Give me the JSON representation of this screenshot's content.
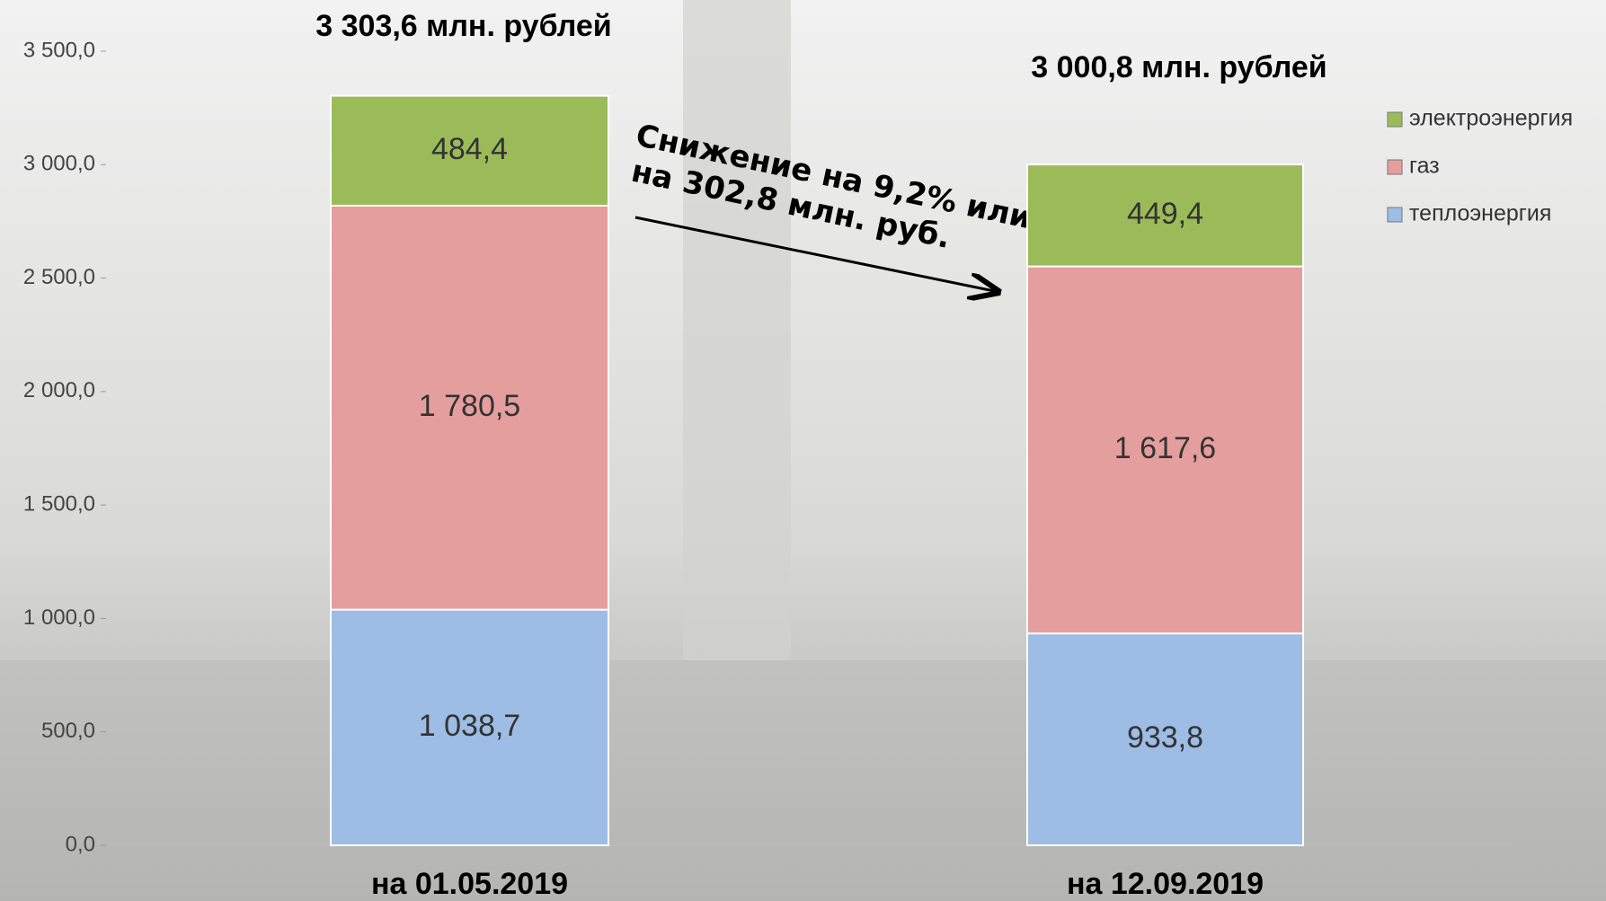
{
  "chart_data": {
    "type": "stacked_bar",
    "categories": [
      "на 01.05.2019",
      "на 12.09.2019"
    ],
    "series": [
      {
        "name": "теплоэнергия",
        "color": "#9dbde4",
        "values": [
          1038.7,
          933.8
        ],
        "value_labels": [
          "1 038,7",
          "933,8"
        ]
      },
      {
        "name": "газ",
        "color": "#e59e9e",
        "values": [
          1780.5,
          1617.6
        ],
        "value_labels": [
          "1 780,5",
          "1 617,6"
        ]
      },
      {
        "name": "электроэнергия",
        "color": "#9bbb59",
        "values": [
          484.4,
          449.4
        ],
        "value_labels": [
          "484,4",
          "449,4"
        ]
      }
    ],
    "ylim": [
      0,
      3500
    ],
    "yticks": [
      {
        "value": 0,
        "label": "0,0"
      },
      {
        "value": 500,
        "label": "500,0"
      },
      {
        "value": 1000,
        "label": "1 000,0"
      },
      {
        "value": 1500,
        "label": "1 500,0"
      },
      {
        "value": 2000,
        "label": "2 000,0"
      },
      {
        "value": 2500,
        "label": "2 500,0"
      },
      {
        "value": 3000,
        "label": "3 000,0"
      },
      {
        "value": 3500,
        "label": "3 500,0"
      }
    ],
    "annotations": [
      "3 303,6 млн. рублей",
      "3 000,8 млн. рублей",
      "Снижение на 9,2% или",
      "на 302,8 млн. руб."
    ],
    "legend": "right"
  }
}
